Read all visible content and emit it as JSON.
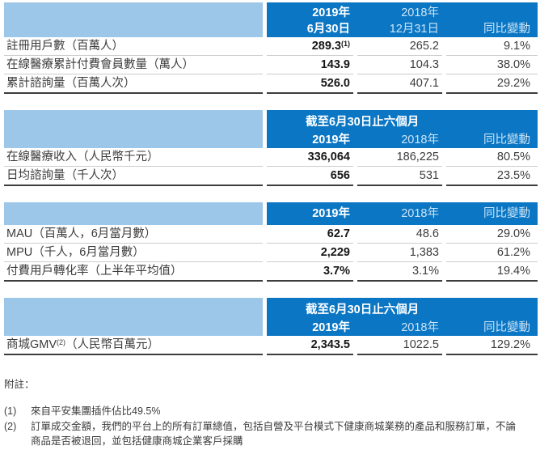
{
  "colors": {
    "header_dark_blue": "#0B76C4",
    "header_light_blue": "#9CC7E9",
    "header_secondary_text": "#CBE4F6",
    "header_primary_text": "#FFFFFF",
    "thick_rule": "#3D3D3D",
    "thin_rule": "#CCCCCC"
  },
  "tables": [
    {
      "header": {
        "y2019_l1": "2019年",
        "y2019_l2": "6月30日",
        "y2018_l1": "2018年",
        "y2018_l2": "12月31日",
        "yoy": "同比變動"
      },
      "rows": [
        {
          "label": "註冊用戶數（百萬人）",
          "v2019": "289.3",
          "v2019_sup": "(1)",
          "v2018": "265.2",
          "yoy": "9.1%"
        },
        {
          "label": "在線醫療累計付費會員數量（萬人）",
          "v2019": "143.9",
          "v2018": "104.3",
          "yoy": "38.0%"
        },
        {
          "label": "累計諮詢量（百萬人次）",
          "v2019": "526.0",
          "v2018": "407.1",
          "yoy": "29.2%"
        }
      ]
    },
    {
      "header": {
        "span": "截至6月30日止六個月",
        "y2019": "2019年",
        "y2018": "2018年",
        "yoy": "同比變動"
      },
      "rows": [
        {
          "label": "在線醫療收入（人民幣千元）",
          "v2019": "336,064",
          "v2018": "186,225",
          "yoy": "80.5%"
        },
        {
          "label": "日均諮詢量（千人次）",
          "v2019": "656",
          "v2018": "531",
          "yoy": "23.5%"
        }
      ]
    },
    {
      "header": {
        "y2019": "2019年",
        "y2018": "2018年",
        "yoy": "同比變動"
      },
      "rows": [
        {
          "label": "MAU（百萬人，6月當月數）",
          "v2019": "62.7",
          "v2018": "48.6",
          "yoy": "29.0%"
        },
        {
          "label": "MPU（千人，6月當月數）",
          "v2019": "2,229",
          "v2018": "1,383",
          "yoy": "61.2%"
        },
        {
          "label": "付費用戶轉化率（上半年平均值）",
          "v2019": "3.7%",
          "v2018": "3.1%",
          "yoy": "19.4%"
        }
      ]
    },
    {
      "header": {
        "span": "截至6月30日止六個月",
        "y2019": "2019年",
        "y2018": "2018年",
        "yoy": "同比變動"
      },
      "rows": [
        {
          "label_pre": "商城GMV",
          "label_sup": "(2)",
          "label_post": "（人民幣百萬元）",
          "v2019": "2,343.5",
          "v2018": "1022.5",
          "yoy": "129.2%"
        }
      ]
    }
  ],
  "footnotes": {
    "title": "附註：",
    "items": [
      {
        "num": "(1)",
        "text": "來自平安集團插件佔比49.5%"
      },
      {
        "num": "(2)",
        "text": "訂單成交金額，我們的平台上的所有訂單總值，包括自營及平台模式下健康商城業務的產品和服務訂單，不論商品是否被退回，並包括健康商城企業客戶採購"
      }
    ]
  }
}
